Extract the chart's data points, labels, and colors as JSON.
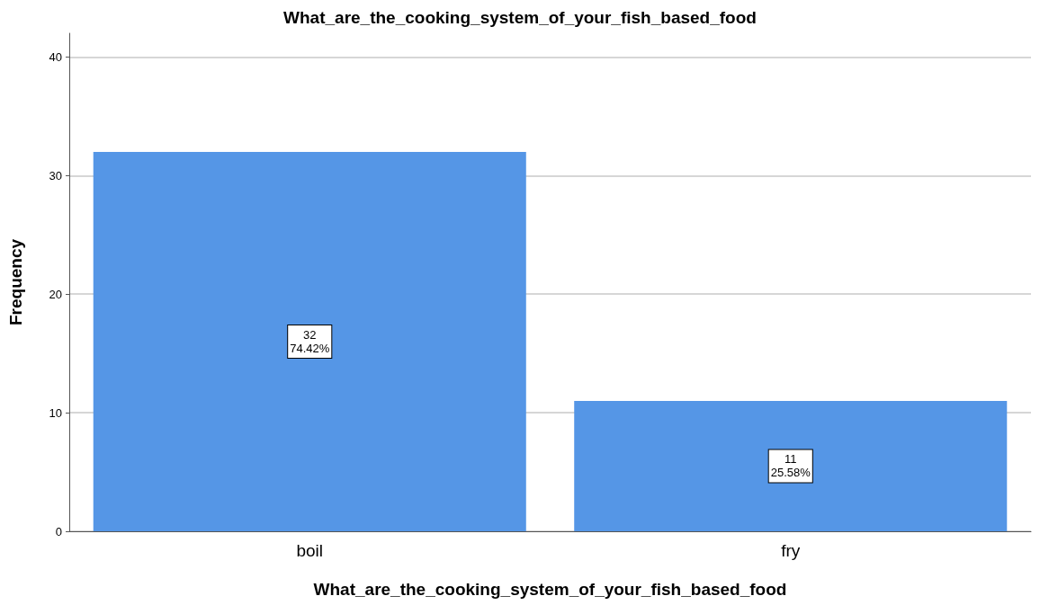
{
  "chart_data": {
    "type": "bar",
    "title": "What_are_the_cooking_system_of_your_fish_based_food",
    "xlabel": "What_are_the_cooking_system_of_your_fish_based_food",
    "ylabel": "Frequency",
    "categories": [
      "boil",
      "fry"
    ],
    "values": [
      32,
      11
    ],
    "value_labels": [
      "32\n74.42%",
      "11\n25.58%"
    ],
    "color": "#5596e6",
    "ylim": [
      0,
      42
    ],
    "yticks": [
      0,
      10,
      20,
      30,
      40
    ],
    "grid": "y"
  }
}
